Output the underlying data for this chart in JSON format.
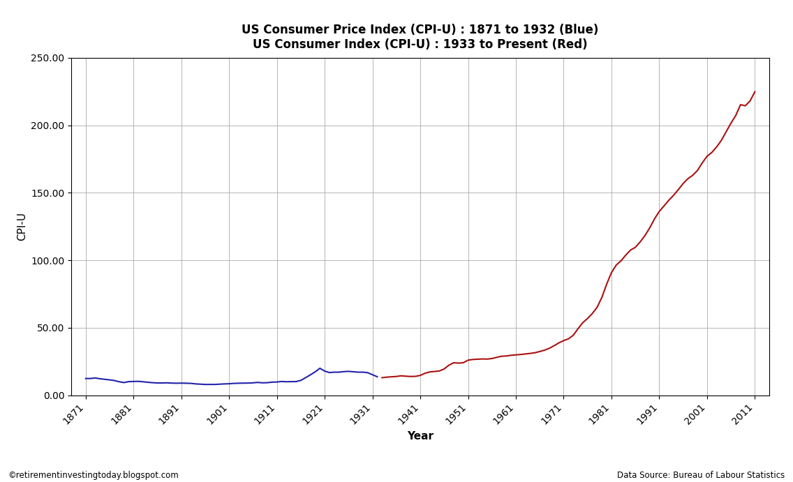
{
  "title_line1": "US Consumer Price Index (CPI-U) : 1871 to 1932 (Blue)",
  "title_line2": "US Consumer Index (CPI-U) : 1933 to Present (Red)",
  "ylabel": "CPI-U",
  "xlabel": "Year",
  "footnote_left": "©retirementinvestingtoday.blogspot.com",
  "footnote_right": "Data Source: Bureau of Labour Statistics",
  "blue_color": "#2222AA",
  "red_color": "#AA1111",
  "ylim": [
    0,
    250
  ],
  "yticks": [
    0.0,
    50.0,
    100.0,
    150.0,
    200.0,
    250.0
  ],
  "ytick_labels": [
    "0.00",
    "50.00",
    "100.00",
    "150.00",
    "200.00",
    "250.00"
  ],
  "xticks": [
    1871,
    1881,
    1891,
    1901,
    1911,
    1921,
    1931,
    1941,
    1951,
    1961,
    1971,
    1981,
    1991,
    2001,
    2011
  ],
  "xlim": [
    1868,
    2014
  ],
  "blue_years": [
    1871,
    1872,
    1873,
    1874,
    1875,
    1876,
    1877,
    1878,
    1879,
    1880,
    1881,
    1882,
    1883,
    1884,
    1885,
    1886,
    1887,
    1888,
    1889,
    1890,
    1891,
    1892,
    1893,
    1894,
    1895,
    1896,
    1897,
    1898,
    1899,
    1900,
    1901,
    1902,
    1903,
    1904,
    1905,
    1906,
    1907,
    1908,
    1909,
    1910,
    1911,
    1912,
    1913,
    1914,
    1915,
    1916,
    1917,
    1918,
    1919,
    1920,
    1921,
    1922,
    1923,
    1924,
    1925,
    1926,
    1927,
    1928,
    1929,
    1930,
    1931,
    1932
  ],
  "blue_values": [
    12.4,
    12.4,
    12.8,
    12.2,
    11.8,
    11.4,
    10.9,
    10.0,
    9.4,
    10.1,
    10.2,
    10.3,
    10.0,
    9.6,
    9.3,
    9.1,
    9.1,
    9.2,
    9.0,
    8.9,
    9.0,
    8.9,
    8.8,
    8.4,
    8.2,
    8.0,
    8.0,
    8.0,
    8.2,
    8.4,
    8.5,
    8.8,
    8.9,
    9.0,
    9.0,
    9.2,
    9.5,
    9.2,
    9.3,
    9.7,
    9.8,
    10.2,
    10.0,
    10.1,
    10.1,
    11.0,
    13.0,
    15.1,
    17.3,
    20.0,
    17.9,
    16.8,
    17.1,
    17.1,
    17.5,
    17.7,
    17.4,
    17.1,
    17.1,
    16.7,
    15.2,
    13.7
  ],
  "red_years": [
    1933,
    1934,
    1935,
    1936,
    1937,
    1938,
    1939,
    1940,
    1941,
    1942,
    1943,
    1944,
    1945,
    1946,
    1947,
    1948,
    1949,
    1950,
    1951,
    1952,
    1953,
    1954,
    1955,
    1956,
    1957,
    1958,
    1959,
    1960,
    1961,
    1962,
    1963,
    1964,
    1965,
    1966,
    1967,
    1968,
    1969,
    1970,
    1971,
    1972,
    1973,
    1974,
    1975,
    1976,
    1977,
    1978,
    1979,
    1980,
    1981,
    1982,
    1983,
    1984,
    1985,
    1986,
    1987,
    1988,
    1989,
    1990,
    1991,
    1992,
    1993,
    1994,
    1995,
    1996,
    1997,
    1998,
    1999,
    2000,
    2001,
    2002,
    2003,
    2004,
    2005,
    2006,
    2007,
    2008,
    2009,
    2010,
    2011
  ],
  "red_values": [
    13.0,
    13.4,
    13.7,
    13.9,
    14.4,
    14.1,
    13.9,
    14.0,
    14.7,
    16.3,
    17.3,
    17.6,
    18.0,
    19.5,
    22.3,
    24.1,
    23.8,
    24.1,
    26.0,
    26.5,
    26.7,
    26.9,
    26.8,
    27.2,
    28.1,
    28.9,
    29.1,
    29.6,
    29.9,
    30.2,
    30.6,
    31.0,
    31.5,
    32.4,
    33.4,
    34.8,
    36.7,
    38.8,
    40.5,
    41.8,
    44.4,
    49.3,
    53.8,
    56.9,
    60.6,
    65.2,
    72.6,
    82.4,
    90.9,
    96.5,
    99.6,
    103.9,
    107.6,
    109.6,
    113.6,
    118.3,
    124.0,
    130.7,
    136.2,
    140.3,
    144.5,
    148.2,
    152.4,
    156.9,
    160.5,
    163.0,
    166.6,
    172.2,
    177.1,
    179.9,
    184.0,
    188.9,
    195.3,
    201.6,
    207.3,
    215.3,
    214.5,
    218.1,
    224.9
  ]
}
